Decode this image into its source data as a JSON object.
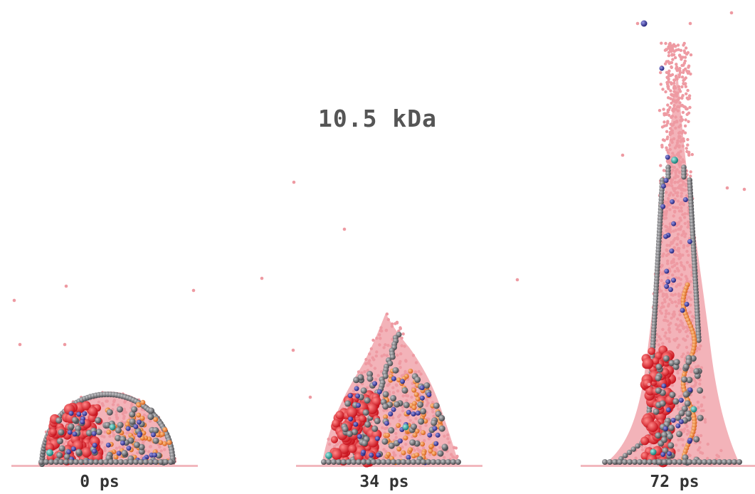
{
  "title": "10.5 kDa",
  "frames": [
    {
      "label": "0 ps"
    },
    {
      "label": "34 ps"
    },
    {
      "label": "72 ps"
    }
  ],
  "colors": {
    "water": "#f0a8ae",
    "water_dark": "#e88b94",
    "protein_red": "#e8323a",
    "protein_orange": "#f08a3a",
    "backbone_grey": "#6f6f72",
    "atom_blue": "#3f3faa",
    "atom_teal": "#2aa6a0",
    "substrate": "#f2b8be"
  }
}
